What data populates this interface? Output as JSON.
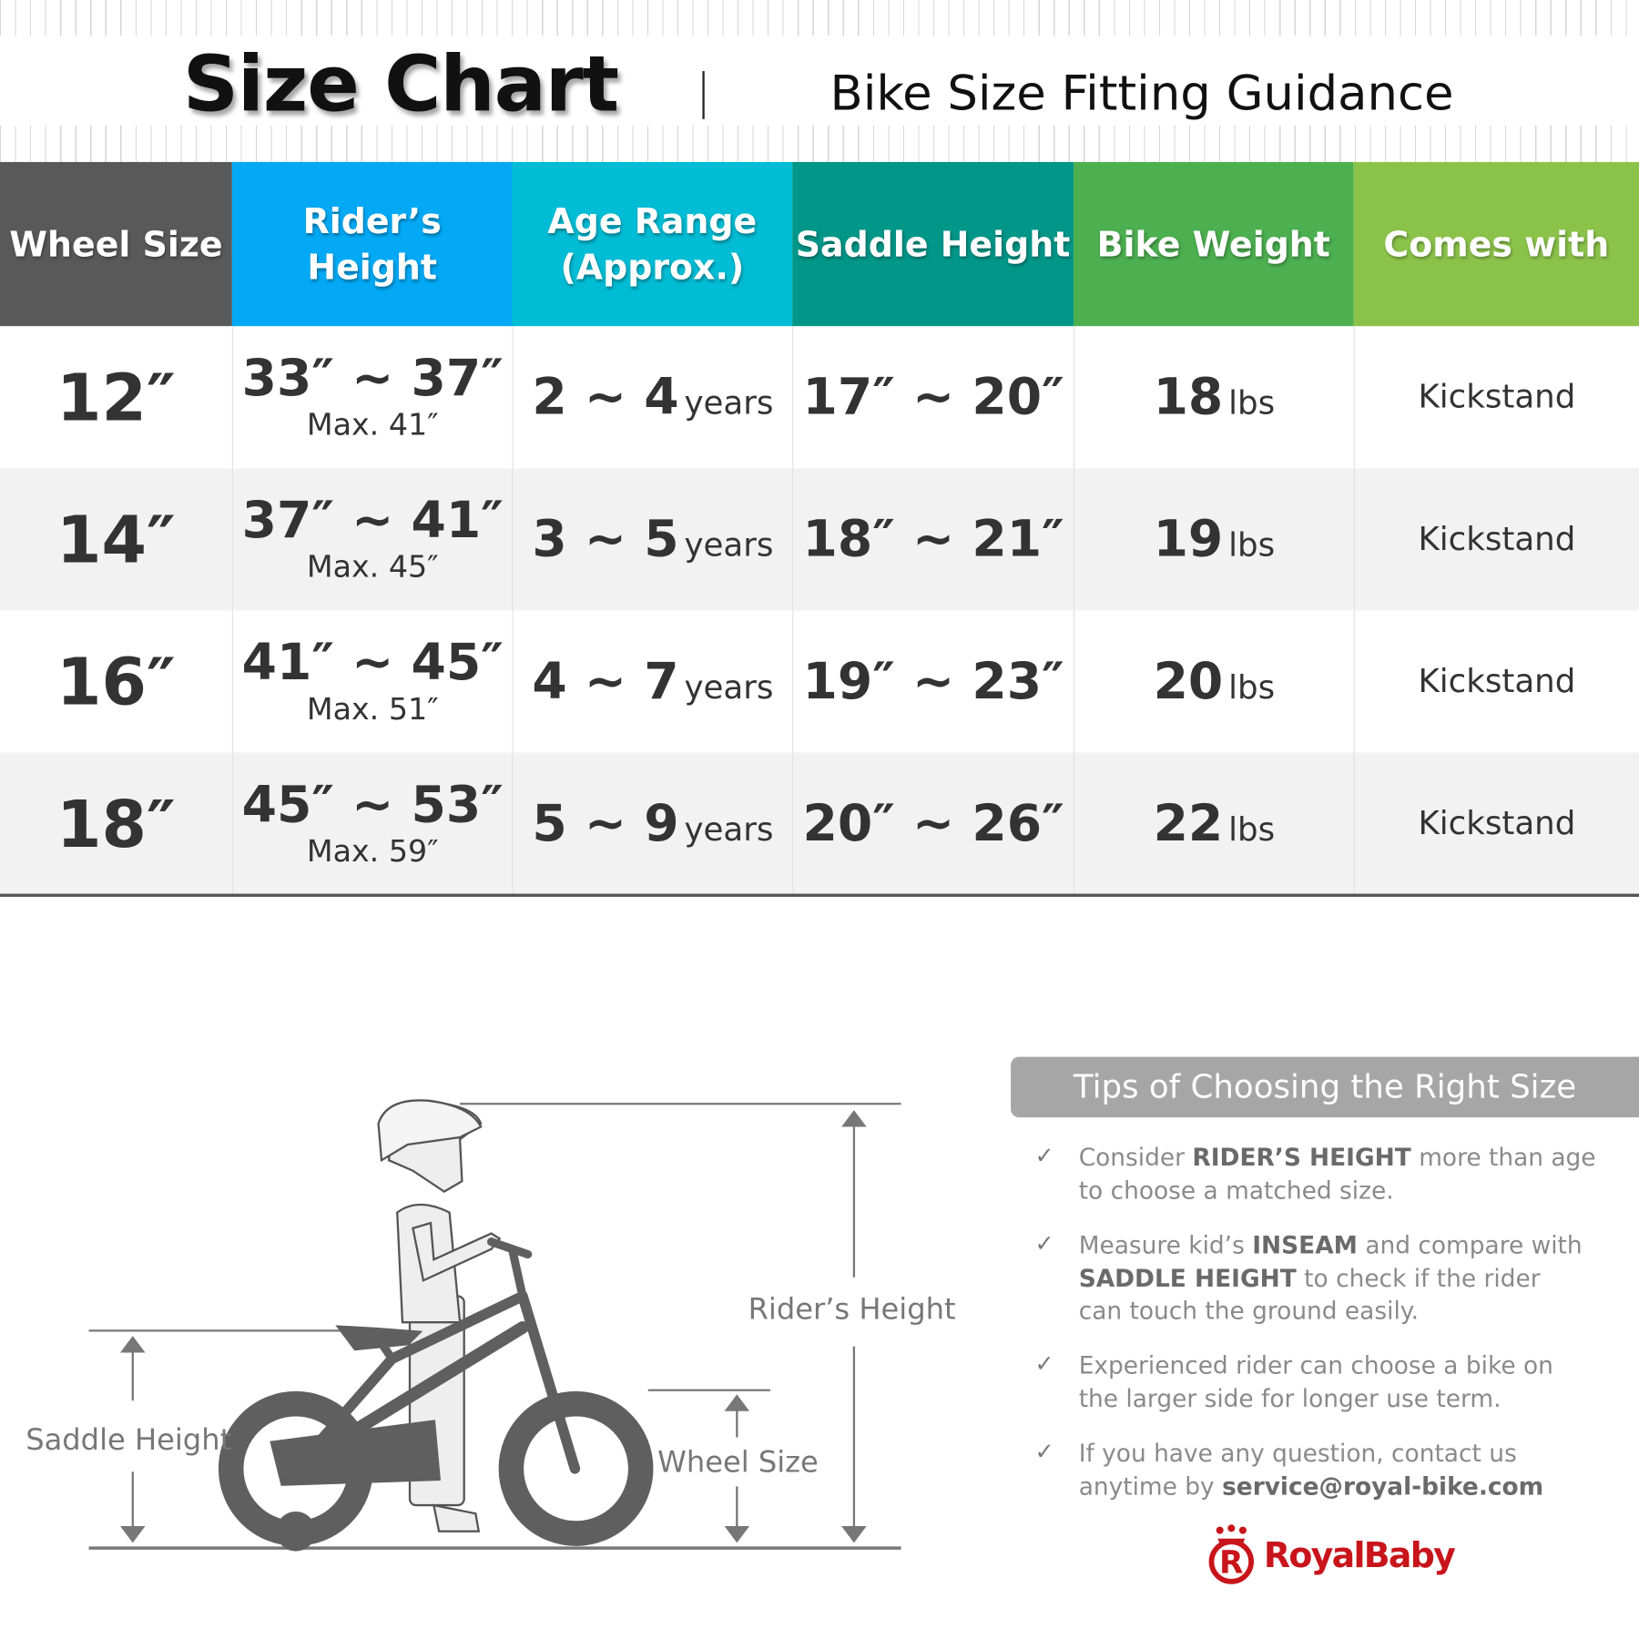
{
  "header": {
    "title": "Size Chart",
    "subtitle": "Bike Size Fitting Guidance"
  },
  "table": {
    "columns": [
      {
        "label": "Wheel Size",
        "color": "#595959"
      },
      {
        "label": "Rider’s Height",
        "color": "#03a9f4"
      },
      {
        "label": "Age Range\n(Approx.)",
        "label_line1": "Age Range",
        "label_line2": "(Approx.)",
        "color": "#00bcd4"
      },
      {
        "label": "Saddle Height",
        "color": "#009688"
      },
      {
        "label": "Bike Weight",
        "color": "#4caf50"
      },
      {
        "label": "Comes with",
        "color": "#8bc34a"
      }
    ],
    "rows": [
      {
        "wheel": "12″",
        "rider_height": "33″ ~ 37″",
        "rider_max": "Max. 41″",
        "age": "2 ~ 4",
        "age_unit": "years",
        "saddle": "17″ ~ 20″",
        "weight": "18",
        "weight_unit": "lbs",
        "comes_with": "Kickstand"
      },
      {
        "wheel": "14″",
        "rider_height": "37″ ~ 41″",
        "rider_max": "Max. 45″",
        "age": "3 ~ 5",
        "age_unit": "years",
        "saddle": "18″ ~ 21″",
        "weight": "19",
        "weight_unit": "lbs",
        "comes_with": "Kickstand"
      },
      {
        "wheel": "16″",
        "rider_height": "41″ ~ 45″",
        "rider_max": "Max. 51″",
        "age": "4 ~ 7",
        "age_unit": "years",
        "saddle": "19″ ~ 23″",
        "weight": "20",
        "weight_unit": "lbs",
        "comes_with": "Kickstand"
      },
      {
        "wheel": "18″",
        "rider_height": "45″ ~ 53″",
        "rider_max": "Max. 59″",
        "age": "5 ~ 9",
        "age_unit": "years",
        "saddle": "20″ ~ 26″",
        "weight": "22",
        "weight_unit": "lbs",
        "comes_with": "Kickstand"
      }
    ]
  },
  "diagram": {
    "riders_height_label": "Rider’s Height",
    "saddle_height_label": "Saddle Height",
    "wheel_size_label": "Wheel Size"
  },
  "tips": {
    "title": "Tips of Choosing the Right Size",
    "check_icon": "✓",
    "items": [
      {
        "pre": "Consider ",
        "bold": "RIDER’S HEIGHT",
        "post": " more than age to choose a matched size."
      },
      {
        "pre": "Measure kid’s ",
        "bold": "INSEAM",
        "mid": " and compare with ",
        "bold2": "SADDLE HEIGHT",
        "post": " to check if the rider can touch the ground easily."
      },
      {
        "pre": "Experienced rider can choose a bike on the larger side for longer use term."
      },
      {
        "pre": "If you have any question, contact us anytime by ",
        "bold": "service@royal-bike.com"
      }
    ]
  },
  "brand": {
    "name": "RoyalBaby",
    "color": "#c8151b"
  }
}
